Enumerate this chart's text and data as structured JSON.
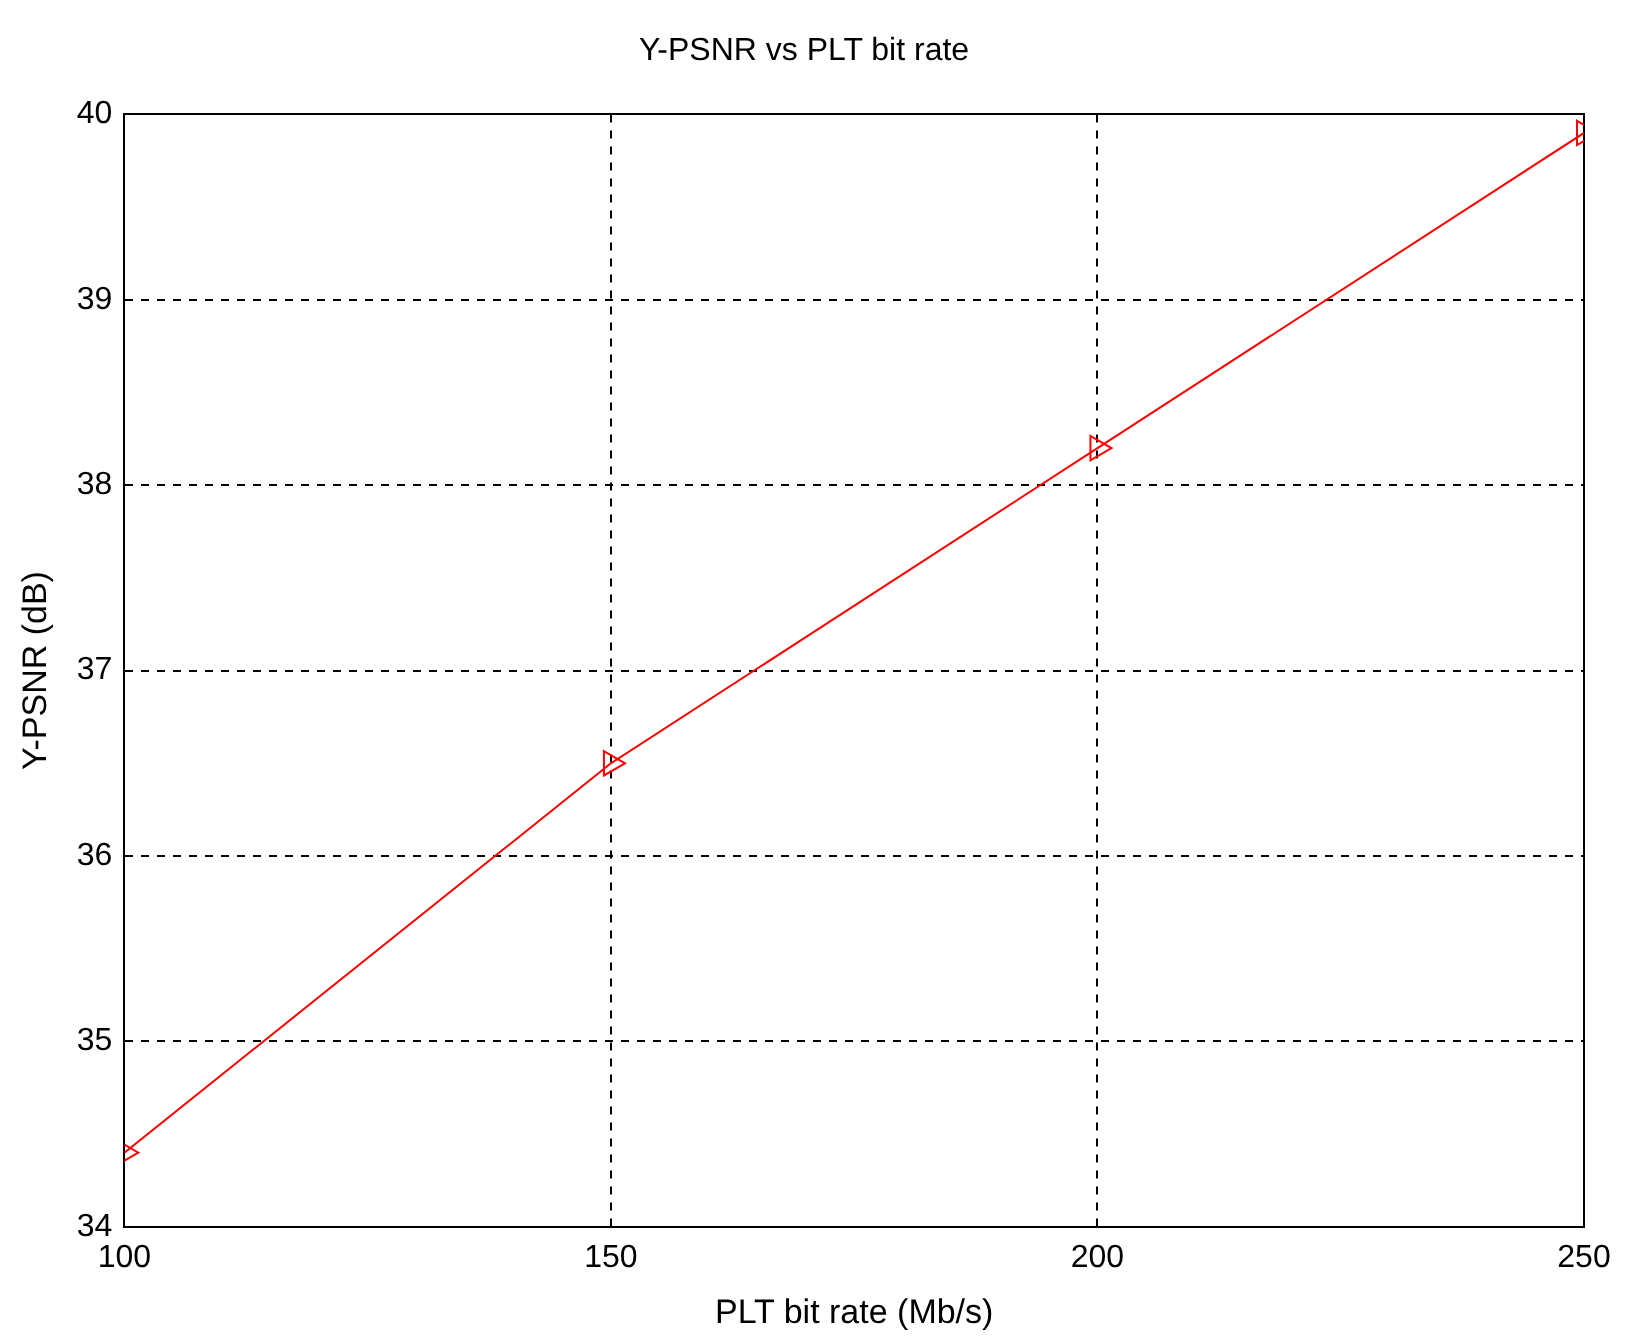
{
  "chart_data": {
    "type": "line",
    "title": "Y-PSNR vs PLT bit rate",
    "xlabel": "PLT bit rate (Mb/s)",
    "ylabel": "Y-PSNR (dB)",
    "x": [
      100,
      150,
      200,
      250
    ],
    "series": [
      {
        "color": "#ff0000",
        "values": [
          34.4,
          36.5,
          38.2,
          39.9
        ]
      }
    ],
    "xlim": [
      100,
      250
    ],
    "xticks": [
      100,
      150,
      200,
      250
    ],
    "ylim": [
      34,
      40
    ],
    "yticks": [
      34,
      35,
      36,
      37,
      38,
      39,
      40
    ],
    "grid": true,
    "legend": false,
    "marker": "triangle",
    "line_style": "solid"
  }
}
